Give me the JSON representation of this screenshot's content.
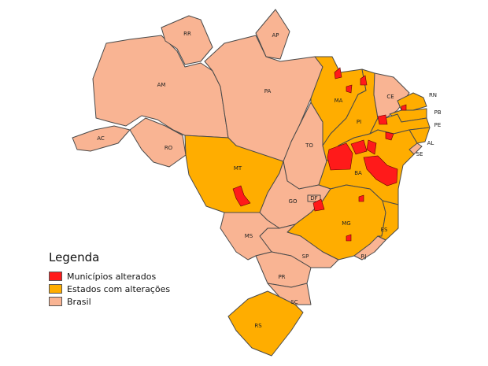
{
  "colors": {
    "municipios_alterados": "#ff1a1a",
    "estados_com_alteracoes": "#ffad00",
    "brasil": "#f9b493",
    "border": "#4a4a4a"
  },
  "legend": {
    "title": "Legenda",
    "items": [
      {
        "label": "Municípios alterados",
        "category": "municipios_alterados"
      },
      {
        "label": "Estados com alterações",
        "category": "estados_com_alteracoes"
      },
      {
        "label": "Brasil",
        "category": "brasil"
      }
    ]
  },
  "states": [
    {
      "code": "AM",
      "category": "brasil"
    },
    {
      "code": "RR",
      "category": "brasil"
    },
    {
      "code": "AP",
      "category": "brasil"
    },
    {
      "code": "PA",
      "category": "brasil"
    },
    {
      "code": "AC",
      "category": "brasil"
    },
    {
      "code": "RO",
      "category": "brasil"
    },
    {
      "code": "MT",
      "category": "estados_com_alteracoes"
    },
    {
      "code": "TO",
      "category": "brasil"
    },
    {
      "code": "MA",
      "category": "estados_com_alteracoes"
    },
    {
      "code": "PI",
      "category": "estados_com_alteracoes"
    },
    {
      "code": "CE",
      "category": "brasil"
    },
    {
      "code": "RN",
      "category": "estados_com_alteracoes"
    },
    {
      "code": "PB",
      "category": "estados_com_alteracoes"
    },
    {
      "code": "PE",
      "category": "estados_com_alteracoes"
    },
    {
      "code": "AL",
      "category": "estados_com_alteracoes"
    },
    {
      "code": "SE",
      "category": "brasil"
    },
    {
      "code": "BA",
      "category": "estados_com_alteracoes"
    },
    {
      "code": "GO",
      "category": "brasil"
    },
    {
      "code": "DF",
      "category": "brasil"
    },
    {
      "code": "MG",
      "category": "estados_com_alteracoes"
    },
    {
      "code": "ES",
      "category": "estados_com_alteracoes"
    },
    {
      "code": "RJ",
      "category": "brasil"
    },
    {
      "code": "SP",
      "category": "brasil"
    },
    {
      "code": "MS",
      "category": "brasil"
    },
    {
      "code": "PR",
      "category": "brasil"
    },
    {
      "code": "SC",
      "category": "brasil"
    },
    {
      "code": "RS",
      "category": "estados_com_alteracoes"
    }
  ]
}
